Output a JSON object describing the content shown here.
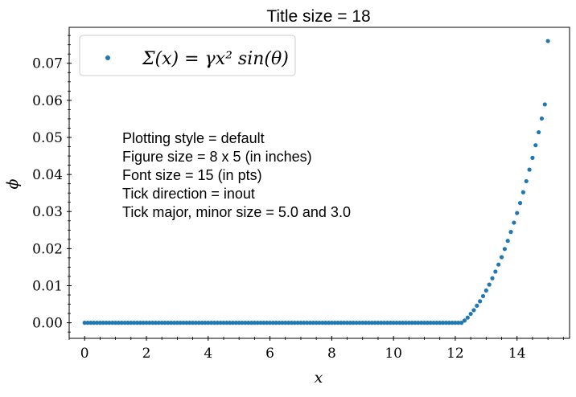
{
  "chart_data": {
    "type": "scatter",
    "title": "Title size = 18",
    "xlabel": "x",
    "ylabel": "ϕ",
    "xlim": [
      -0.5,
      15.7
    ],
    "ylim": [
      -0.0042,
      0.0797
    ],
    "xticks": [
      0,
      2,
      4,
      6,
      8,
      10,
      12,
      14
    ],
    "xtick_labels": [
      "0",
      "2",
      "4",
      "6",
      "8",
      "10",
      "12",
      "14"
    ],
    "yticks": [
      0.0,
      0.01,
      0.02,
      0.03,
      0.04,
      0.05,
      0.06,
      0.07
    ],
    "ytick_labels": [
      "0.00",
      "0.01",
      "0.02",
      "0.03",
      "0.04",
      "0.05",
      "0.06",
      "0.07"
    ],
    "legend": {
      "position": "upper left",
      "label": "Σ(x) = γx² sin(θ)"
    },
    "grid": false,
    "tick_direction": "inout",
    "series": [
      {
        "name": "Σ(x) = γx² sin(θ)",
        "color": "#1f77b4",
        "x": [
          0.0,
          0.5,
          1.0,
          1.5,
          2.0,
          2.5,
          3.0,
          3.5,
          4.0,
          4.5,
          5.0,
          5.5,
          6.0,
          6.5,
          7.0,
          7.5,
          8.0,
          8.5,
          9.0,
          9.5,
          10.0,
          10.5,
          11.0,
          11.5,
          12.0,
          12.2,
          12.3,
          12.4,
          12.5,
          12.6,
          12.7,
          12.8,
          12.9,
          13.0,
          13.1,
          13.2,
          13.3,
          13.4,
          13.5,
          13.6,
          13.7,
          13.8,
          13.9,
          14.0,
          14.1,
          14.2,
          14.3,
          14.4,
          14.5,
          14.6,
          14.7,
          14.8,
          14.9,
          15.0
        ],
        "y": [
          0.0,
          0.0,
          0.0,
          0.0,
          0.0,
          0.0,
          0.0,
          0.0,
          0.0,
          0.0,
          0.0,
          0.0,
          0.0,
          0.0,
          0.0,
          0.0,
          0.0,
          0.0,
          0.0,
          0.0,
          0.0,
          0.0,
          0.0,
          0.0,
          0.0,
          0.0,
          0.0006,
          0.0014,
          0.0024,
          0.0034,
          0.0046,
          0.0058,
          0.0072,
          0.0087,
          0.0103,
          0.012,
          0.0138,
          0.0157,
          0.0177,
          0.0199,
          0.0221,
          0.0245,
          0.027,
          0.0296,
          0.0323,
          0.0352,
          0.0382,
          0.0413,
          0.0445,
          0.0479,
          0.0514,
          0.0551,
          0.0589,
          0.076
        ]
      }
    ]
  },
  "annotation_lines": [
    "Plotting style = default",
    "Figure size = 8 x 5 (in inches)",
    "Font size = 15 (in pts)",
    "Tick direction = inout",
    "Tick major, minor size = 5.0 and 3.0"
  ]
}
